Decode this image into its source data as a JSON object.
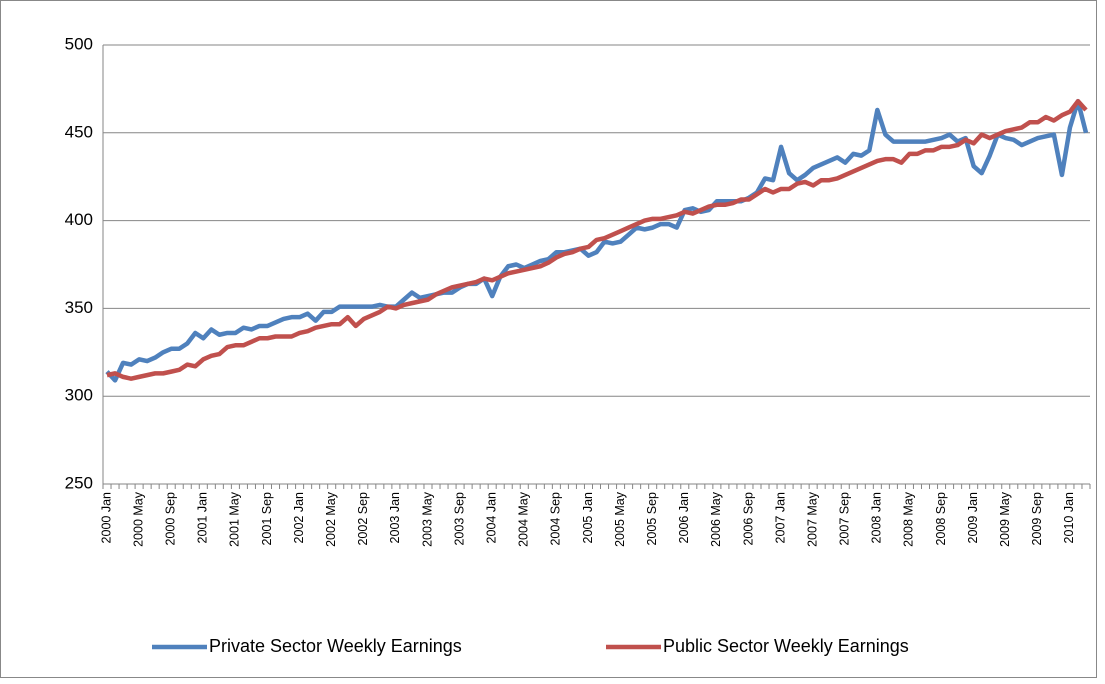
{
  "chart_data": {
    "type": "line",
    "categories": [
      "2000 Jan",
      null,
      null,
      null,
      "2000 May",
      null,
      null,
      null,
      "2000 Sep",
      null,
      null,
      null,
      "2001 Jan",
      null,
      null,
      null,
      "2001 May",
      null,
      null,
      null,
      "2001 Sep",
      null,
      null,
      null,
      "2002 Jan",
      null,
      null,
      null,
      "2002 May",
      null,
      null,
      null,
      "2002 Sep",
      null,
      null,
      null,
      "2003 Jan",
      null,
      null,
      null,
      "2003 May",
      null,
      null,
      null,
      "2003 Sep",
      null,
      null,
      null,
      "2004 Jan",
      null,
      null,
      null,
      "2004 May",
      null,
      null,
      null,
      "2004 Sep",
      null,
      null,
      null,
      "2005 Jan",
      null,
      null,
      null,
      "2005 May",
      null,
      null,
      null,
      "2005 Sep",
      null,
      null,
      null,
      "2006 Jan",
      null,
      null,
      null,
      "2006 May",
      null,
      null,
      null,
      "2006 Sep",
      null,
      null,
      null,
      "2007 Jan",
      null,
      null,
      null,
      "2007 May",
      null,
      null,
      null,
      "2007 Sep",
      null,
      null,
      null,
      "2008 Jan",
      null,
      null,
      null,
      "2008 May",
      null,
      null,
      null,
      "2008 Sep",
      null,
      null,
      null,
      "2009 Jan",
      null,
      null,
      null,
      "2009 May",
      null,
      null,
      null,
      "2009 Sep",
      null,
      null,
      null,
      "2010 Jan",
      null,
      null
    ],
    "series": [
      {
        "name": "Private Sector Weekly Earnings",
        "color": "#4f81bd",
        "values": [
          314,
          309,
          319,
          318,
          321,
          320,
          322,
          325,
          327,
          327,
          330,
          336,
          333,
          338,
          335,
          336,
          336,
          339,
          338,
          340,
          340,
          342,
          344,
          345,
          345,
          347,
          343,
          348,
          348,
          351,
          351,
          351,
          351,
          351,
          352,
          351,
          351,
          355,
          359,
          356,
          357,
          358,
          359,
          359,
          362,
          364,
          364,
          367,
          357,
          368,
          374,
          375,
          373,
          375,
          377,
          378,
          382,
          382,
          383,
          384,
          380,
          382,
          388,
          387,
          388,
          392,
          396,
          395,
          396,
          398,
          398,
          396,
          406,
          407,
          405,
          406,
          411,
          411,
          411,
          411,
          413,
          416,
          424,
          423,
          442,
          427,
          423,
          426,
          430,
          432,
          434,
          436,
          433,
          438,
          437,
          440,
          463,
          449,
          445,
          445,
          445,
          445,
          445,
          446,
          447,
          449,
          445,
          447,
          431,
          427,
          437,
          449,
          447,
          446,
          443,
          445,
          447,
          448,
          449,
          426,
          453,
          468,
          450
        ]
      },
      {
        "name": "Public Sector Weekly Earnings",
        "color": "#c0504d",
        "values": [
          312,
          313,
          311,
          310,
          311,
          312,
          313,
          313,
          314,
          315,
          318,
          317,
          321,
          323,
          324,
          328,
          329,
          329,
          331,
          333,
          333,
          334,
          334,
          334,
          336,
          337,
          339,
          340,
          341,
          341,
          345,
          340,
          344,
          346,
          348,
          351,
          350,
          352,
          353,
          354,
          355,
          358,
          360,
          362,
          363,
          364,
          365,
          367,
          366,
          368,
          370,
          371,
          372,
          373,
          374,
          376,
          379,
          381,
          382,
          384,
          385,
          389,
          390,
          392,
          394,
          396,
          398,
          400,
          401,
          401,
          402,
          403,
          405,
          404,
          406,
          408,
          409,
          409,
          410,
          412,
          412,
          415,
          418,
          416,
          418,
          418,
          421,
          422,
          420,
          423,
          423,
          424,
          426,
          428,
          430,
          432,
          434,
          435,
          435,
          433,
          438,
          438,
          440,
          440,
          442,
          442,
          443,
          446,
          444,
          449,
          447,
          449,
          451,
          452,
          453,
          456,
          456,
          459,
          457,
          460,
          462,
          468,
          463
        ]
      }
    ],
    "ylim": [
      250,
      500
    ],
    "yticks": [
      250,
      300,
      350,
      400,
      450,
      500
    ],
    "grid": true,
    "legend": "bottom"
  }
}
